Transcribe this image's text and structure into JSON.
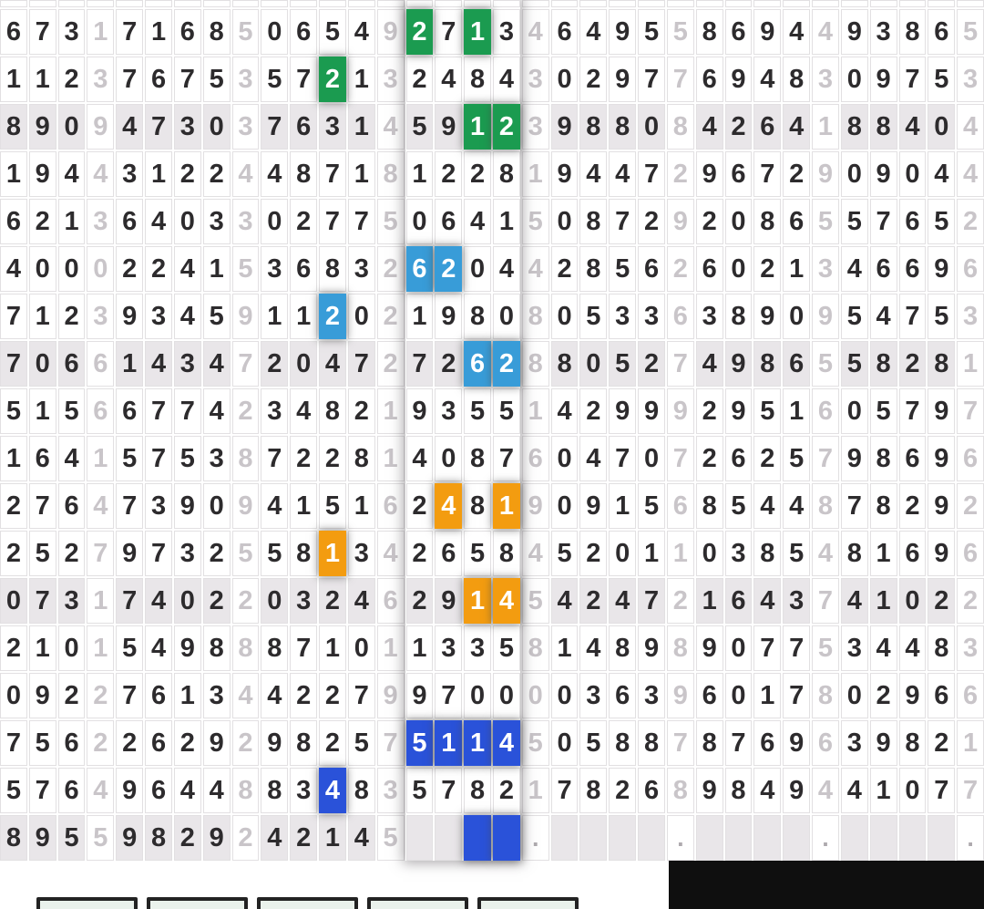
{
  "app": {
    "title": "number-results-grid"
  },
  "palette": {
    "green": "#1b9b50",
    "sky": "#389cd8",
    "orange": "#f39c10",
    "royal": "#2a52d9",
    "shaded_row": "#e9e6e9",
    "grid_border": "#e2e0e2",
    "digit": "#2d2b2d",
    "muted_digit": "#c9c5c9",
    "dot": "#aeaaae",
    "panel_black": "#0f0f0f",
    "button_fill": "#eaf2ec",
    "button_border": "#232323"
  },
  "grid": {
    "columns": 34,
    "separator_columns": [
      3,
      8,
      13,
      18,
      23,
      28,
      33
    ],
    "highlight_legend": {
      "g": "green",
      "b": "sky",
      "o": "orange",
      "r": "royal"
    },
    "rows": [
      {
        "cells": "6731716850654927134649558694493865",
        "shaded": false,
        "hl": {
          "14": "g",
          "16": "g"
        }
      },
      {
        "cells": "1123767535721324843029776948309753",
        "shaded": false,
        "hl": {
          "11": "g"
        }
      },
      {
        "cells": "8909473037631459123988084264188404",
        "shaded": true,
        "hl": {
          "16": "g",
          "17": "g"
        }
      },
      {
        "cells": "1944312244871812281944729672909044",
        "shaded": false,
        "hl": {}
      },
      {
        "cells": "6213640330277506415087292086557652",
        "shaded": false,
        "hl": {}
      },
      {
        "cells": "4000224153683262044285626021346696",
        "shaded": false,
        "hl": {
          "14": "b",
          "15": "b"
        }
      },
      {
        "cells": "7123934591120219808053363890954753",
        "shaded": false,
        "hl": {
          "11": "b"
        }
      },
      {
        "cells": "7066143472047272628805274986558281",
        "shaded": true,
        "hl": {
          "16": "b",
          "17": "b"
        }
      },
      {
        "cells": "5156677423482193551429992951605797",
        "shaded": false,
        "hl": {}
      },
      {
        "cells": "1641575387228140876047072625798696",
        "shaded": false,
        "hl": {}
      },
      {
        "cells": "2764739094151624819091568544878292",
        "shaded": false,
        "hl": {
          "15": "o",
          "17": "o"
        }
      },
      {
        "cells": "2527973255813426584520110385481696",
        "shaded": false,
        "hl": {
          "11": "o"
        }
      },
      {
        "cells": "0731740220324629145424721643741022",
        "shaded": true,
        "hl": {
          "16": "o",
          "17": "o"
        }
      },
      {
        "cells": "2101549888710113358148989077534483",
        "shaded": false,
        "hl": {}
      },
      {
        "cells": "0922761344227997000036396017802966",
        "shaded": false,
        "hl": {}
      },
      {
        "cells": "7562262929825751145058878769639821",
        "shaded": false,
        "hl": {
          "14": "r",
          "15": "r",
          "16": "r",
          "17": "r"
        }
      },
      {
        "cells": "5764964488348357821782689849441077",
        "shaded": false,
        "hl": {
          "11": "r"
        }
      },
      {
        "cells": "89559829242145__##.____.____.____.",
        "shaded": true,
        "hl": {
          "16": "r",
          "17": "r"
        }
      }
    ]
  },
  "footer": {
    "button_count": 5
  }
}
